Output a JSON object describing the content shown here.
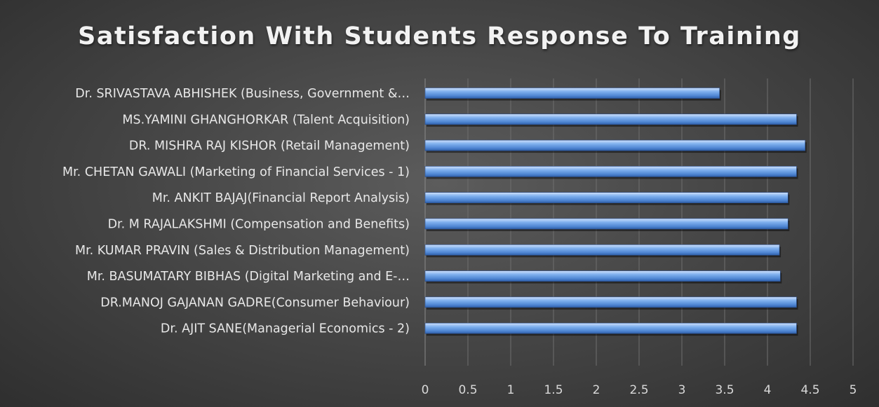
{
  "chart_data": {
    "type": "bar",
    "orientation": "horizontal",
    "title": "Satisfaction With Students Response To Training",
    "xlabel": "",
    "ylabel": "",
    "xlim": [
      0,
      5
    ],
    "ticks": [
      "0",
      "0.5",
      "1",
      "1.5",
      "2",
      "2.5",
      "3",
      "3.5",
      "4",
      "4.5",
      "5"
    ],
    "tick_values": [
      0,
      0.5,
      1,
      1.5,
      2,
      2.5,
      3,
      3.5,
      4,
      4.5,
      5
    ],
    "grid": true,
    "legend": "none",
    "bar_color": "#6f9fe0",
    "categories": [
      "Dr. SRIVASTAVA ABHISHEK (Business, Government &…",
      "MS.YAMINI GHANGHORKAR (Talent Acquisition)",
      "DR. MISHRA RAJ KISHOR (Retail Management)",
      "Mr. CHETAN GAWALI (Marketing of Financial Services - 1)",
      "Mr. ANKIT BAJAJ(Financial Report Analysis)",
      "Dr. M RAJALAKSHMI (Compensation and Benefits)",
      "Mr. KUMAR PRAVIN (Sales & Distribution Management)",
      "Mr. BASUMATARY BIBHAS (Digital Marketing and E-…",
      "DR.MANOJ GAJANAN GADRE(Consumer Behaviour)",
      "Dr. AJIT SANE(Managerial Economics - 2)"
    ],
    "values": [
      3.44,
      4.34,
      4.44,
      4.34,
      4.24,
      4.24,
      4.14,
      4.15,
      4.34,
      4.34
    ]
  }
}
